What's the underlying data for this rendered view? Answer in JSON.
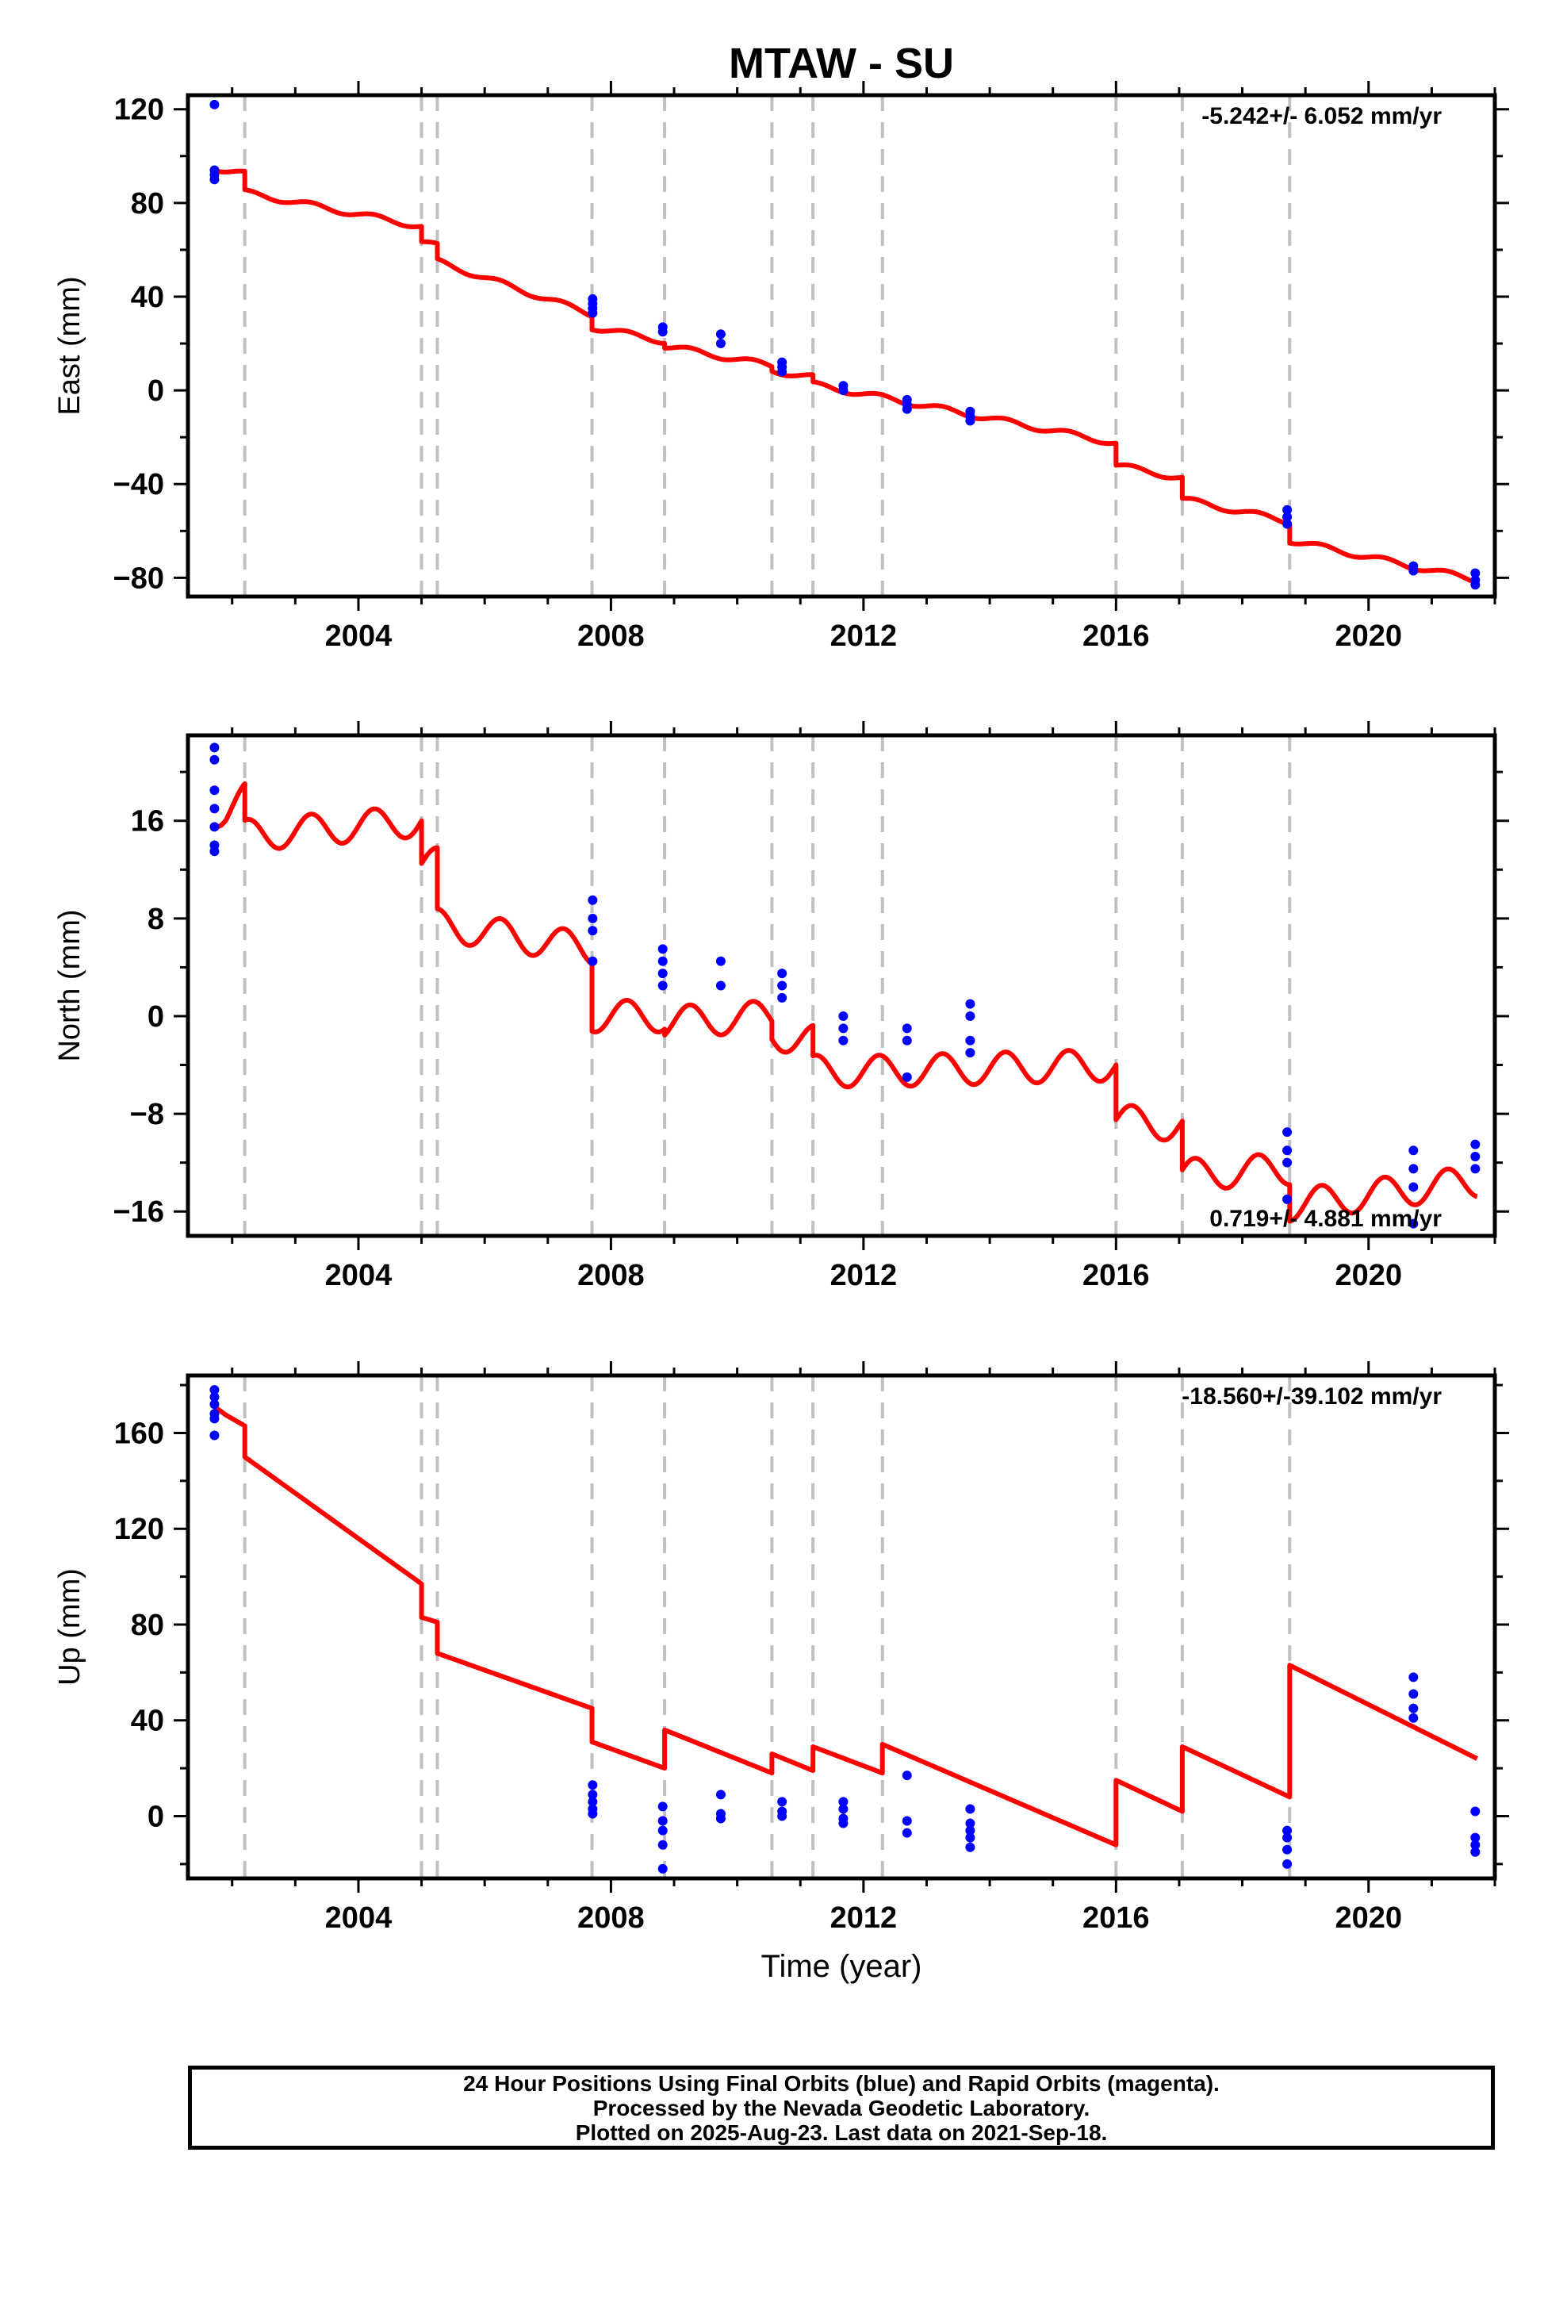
{
  "colors": {
    "model": "#ff0000",
    "points": "#0000ff",
    "breaks": "#c0c0c0",
    "frame": "#000000"
  },
  "chart_data": [
    {
      "type": "scatter",
      "panel": "east",
      "title": "MTAW - SU",
      "ylabel": "East (mm)",
      "xlabel": "",
      "rate_label": "-5.242+/- 6.052 mm/yr",
      "xlim": [
        2001.3,
        2022.0
      ],
      "ylim": [
        -88,
        126
      ],
      "xticks": [
        2004,
        2008,
        2012,
        2016,
        2020
      ],
      "yticks": [
        -80,
        -40,
        0,
        40,
        80,
        120
      ],
      "grid": false,
      "breaks": [
        2002.2,
        2005.0,
        2005.25,
        2007.7,
        2008.85,
        2010.55,
        2011.2,
        2012.3,
        2016.0,
        2017.05,
        2018.75
      ],
      "model": {
        "segments": [
          {
            "start": 2001.72,
            "end": 2001.9,
            "start_value": 95.0,
            "end_value": 93.9
          },
          {
            "start": 2001.9,
            "end": 2002.2,
            "start_value": 93.9,
            "end_value": 92.4
          },
          {
            "start": 2002.2,
            "end": 2005.0,
            "start_value": 84.5,
            "end_value": 70.0
          },
          {
            "start": 2005.0,
            "end": 2005.25,
            "start_value": 63.5,
            "end_value": 61.5
          },
          {
            "start": 2005.25,
            "end": 2007.7,
            "start_value": 55.0,
            "end_value": 32.5
          },
          {
            "start": 2007.7,
            "end": 2008.85,
            "start_value": 27.0,
            "end_value": 21.0
          },
          {
            "start": 2008.85,
            "end": 2010.55,
            "start_value": 19.0,
            "end_value": 10.5
          },
          {
            "start": 2010.55,
            "end": 2011.2,
            "start_value": 8.5,
            "end_value": 5.5
          },
          {
            "start": 2011.2,
            "end": 2012.3,
            "start_value": 2.5,
            "end_value": -3.0
          },
          {
            "start": 2012.3,
            "end": 2016.0,
            "start_value": -3.0,
            "end_value": -22.5
          },
          {
            "start": 2016.0,
            "end": 2017.05,
            "start_value": -32.0,
            "end_value": -37.5
          },
          {
            "start": 2017.05,
            "end": 2018.75,
            "start_value": -46.5,
            "end_value": -56.0
          },
          {
            "start": 2018.75,
            "end": 2021.72,
            "start_value": -64.0,
            "end_value": -81.0
          }
        ],
        "seasonal_amplitude": 1.2
      },
      "points": [
        {
          "x": 2001.72,
          "y": 122
        },
        {
          "x": 2001.72,
          "y": 94
        },
        {
          "x": 2001.72,
          "y": 92
        },
        {
          "x": 2001.72,
          "y": 90
        },
        {
          "x": 2007.71,
          "y": 39
        },
        {
          "x": 2007.71,
          "y": 37
        },
        {
          "x": 2007.71,
          "y": 35
        },
        {
          "x": 2007.71,
          "y": 33
        },
        {
          "x": 2008.82,
          "y": 27
        },
        {
          "x": 2008.82,
          "y": 25
        },
        {
          "x": 2009.74,
          "y": 24
        },
        {
          "x": 2009.74,
          "y": 20
        },
        {
          "x": 2010.71,
          "y": 12
        },
        {
          "x": 2010.71,
          "y": 10
        },
        {
          "x": 2010.71,
          "y": 8
        },
        {
          "x": 2011.68,
          "y": 2
        },
        {
          "x": 2011.68,
          "y": 0
        },
        {
          "x": 2012.69,
          "y": -4
        },
        {
          "x": 2012.69,
          "y": -6
        },
        {
          "x": 2012.69,
          "y": -8
        },
        {
          "x": 2013.69,
          "y": -9
        },
        {
          "x": 2013.69,
          "y": -11
        },
        {
          "x": 2013.69,
          "y": -13
        },
        {
          "x": 2018.71,
          "y": -51
        },
        {
          "x": 2018.71,
          "y": -54
        },
        {
          "x": 2018.71,
          "y": -57
        },
        {
          "x": 2020.71,
          "y": -75
        },
        {
          "x": 2020.71,
          "y": -77
        },
        {
          "x": 2021.69,
          "y": -78
        },
        {
          "x": 2021.69,
          "y": -81
        },
        {
          "x": 2021.69,
          "y": -83
        }
      ]
    },
    {
      "type": "scatter",
      "panel": "north",
      "title": "",
      "ylabel": "North (mm)",
      "xlabel": "",
      "rate_label": "0.719+/- 4.881 mm/yr",
      "xlim": [
        2001.3,
        2022.0
      ],
      "ylim": [
        -18,
        23
      ],
      "xticks": [
        2004,
        2008,
        2012,
        2016,
        2020
      ],
      "yticks": [
        -16,
        -8,
        0,
        8,
        16
      ],
      "grid": false,
      "breaks": [
        2002.2,
        2005.0,
        2005.25,
        2007.7,
        2008.85,
        2010.55,
        2011.2,
        2012.3,
        2016.0,
        2017.05,
        2018.75
      ],
      "model": {
        "segments": [
          {
            "start": 2001.72,
            "end": 2001.9,
            "start_value": 16.8,
            "end_value": 16.8
          },
          {
            "start": 2001.9,
            "end": 2002.2,
            "start_value": 16.8,
            "end_value": 17.8
          },
          {
            "start": 2002.2,
            "end": 2005.0,
            "start_value": 14.8,
            "end_value": 16.0
          },
          {
            "start": 2005.0,
            "end": 2005.25,
            "start_value": 12.5,
            "end_value": 12.5
          },
          {
            "start": 2005.25,
            "end": 2007.7,
            "start_value": 7.5,
            "end_value": 5.5
          },
          {
            "start": 2007.7,
            "end": 2008.85,
            "start_value": 0.0,
            "end_value": 0.0
          },
          {
            "start": 2008.85,
            "end": 2010.55,
            "start_value": -0.5,
            "end_value": 0.0
          },
          {
            "start": 2010.55,
            "end": 2011.2,
            "start_value": -1.5,
            "end_value": -2.0
          },
          {
            "start": 2011.2,
            "end": 2012.3,
            "start_value": -4.5,
            "end_value": -4.5
          },
          {
            "start": 2012.3,
            "end": 2016.0,
            "start_value": -4.5,
            "end_value": -4.0
          },
          {
            "start": 2016.0,
            "end": 2017.05,
            "start_value": -8.5,
            "end_value": -9.0
          },
          {
            "start": 2017.05,
            "end": 2018.75,
            "start_value": -13.0,
            "end_value": -12.5
          },
          {
            "start": 2018.75,
            "end": 2021.72,
            "start_value": -15.5,
            "end_value": -13.5
          }
        ],
        "seasonal_amplitude": 1.3
      },
      "points": [
        {
          "x": 2001.72,
          "y": 22
        },
        {
          "x": 2001.72,
          "y": 21
        },
        {
          "x": 2001.72,
          "y": 18.5
        },
        {
          "x": 2001.72,
          "y": 17
        },
        {
          "x": 2001.72,
          "y": 15.5
        },
        {
          "x": 2001.72,
          "y": 14
        },
        {
          "x": 2001.72,
          "y": 13.5
        },
        {
          "x": 2007.71,
          "y": 9.5
        },
        {
          "x": 2007.71,
          "y": 8
        },
        {
          "x": 2007.71,
          "y": 7
        },
        {
          "x": 2007.71,
          "y": 4.5
        },
        {
          "x": 2008.82,
          "y": 5.5
        },
        {
          "x": 2008.82,
          "y": 4.5
        },
        {
          "x": 2008.82,
          "y": 3.5
        },
        {
          "x": 2008.82,
          "y": 2.5
        },
        {
          "x": 2009.74,
          "y": 4.5
        },
        {
          "x": 2009.74,
          "y": 2.5
        },
        {
          "x": 2010.71,
          "y": 3.5
        },
        {
          "x": 2010.71,
          "y": 2.5
        },
        {
          "x": 2010.71,
          "y": 1.5
        },
        {
          "x": 2011.68,
          "y": 0
        },
        {
          "x": 2011.68,
          "y": -1
        },
        {
          "x": 2011.68,
          "y": -2
        },
        {
          "x": 2012.69,
          "y": -1
        },
        {
          "x": 2012.69,
          "y": -2
        },
        {
          "x": 2012.69,
          "y": -5
        },
        {
          "x": 2013.69,
          "y": 1
        },
        {
          "x": 2013.69,
          "y": 0
        },
        {
          "x": 2013.69,
          "y": -2
        },
        {
          "x": 2013.69,
          "y": -3
        },
        {
          "x": 2018.71,
          "y": -9.5
        },
        {
          "x": 2018.71,
          "y": -11
        },
        {
          "x": 2018.71,
          "y": -12
        },
        {
          "x": 2018.71,
          "y": -15
        },
        {
          "x": 2020.71,
          "y": -11
        },
        {
          "x": 2020.71,
          "y": -12.5
        },
        {
          "x": 2020.71,
          "y": -14
        },
        {
          "x": 2020.71,
          "y": -17
        },
        {
          "x": 2021.69,
          "y": -10.5
        },
        {
          "x": 2021.69,
          "y": -11.5
        },
        {
          "x": 2021.69,
          "y": -12.5
        }
      ]
    },
    {
      "type": "scatter",
      "panel": "up",
      "title": "",
      "ylabel": "Up (mm)",
      "xlabel": "Time (year)",
      "rate_label": "-18.560+/-39.102 mm/yr",
      "xlim": [
        2001.3,
        2022.0
      ],
      "ylim": [
        -26,
        184
      ],
      "xticks": [
        2004,
        2008,
        2012,
        2016,
        2020
      ],
      "yticks": [
        0,
        40,
        80,
        120,
        160
      ],
      "grid": false,
      "breaks": [
        2002.2,
        2005.0,
        2005.25,
        2007.7,
        2008.85,
        2010.55,
        2011.2,
        2012.3,
        2016.0,
        2017.05,
        2018.75
      ],
      "model": {
        "segments": [
          {
            "start": 2001.72,
            "end": 2001.9,
            "start_value": 171.0,
            "end_value": 167.5
          },
          {
            "start": 2001.9,
            "end": 2002.2,
            "start_value": 167.5,
            "end_value": 163.0
          },
          {
            "start": 2002.2,
            "end": 2005.0,
            "start_value": 150.0,
            "end_value": 97.0
          },
          {
            "start": 2005.0,
            "end": 2005.25,
            "start_value": 83.0,
            "end_value": 81.0
          },
          {
            "start": 2005.25,
            "end": 2007.7,
            "start_value": 68.0,
            "end_value": 45.0
          },
          {
            "start": 2007.7,
            "end": 2008.85,
            "start_value": 31.0,
            "end_value": 20.0
          },
          {
            "start": 2008.85,
            "end": 2010.55,
            "start_value": 36.0,
            "end_value": 18.0
          },
          {
            "start": 2010.55,
            "end": 2011.2,
            "start_value": 26.0,
            "end_value": 19.0
          },
          {
            "start": 2011.2,
            "end": 2012.3,
            "start_value": 29.0,
            "end_value": 18.0
          },
          {
            "start": 2012.3,
            "end": 2016.0,
            "start_value": 30.0,
            "end_value": -12.0
          },
          {
            "start": 2016.0,
            "end": 2017.05,
            "start_value": 15.0,
            "end_value": 2.0
          },
          {
            "start": 2017.05,
            "end": 2018.75,
            "start_value": 29.0,
            "end_value": 8.0
          },
          {
            "start": 2018.75,
            "end": 2021.72,
            "start_value": 63.0,
            "end_value": 24.0
          }
        ],
        "seasonal_amplitude": 0
      },
      "points": [
        {
          "x": 2001.72,
          "y": 178
        },
        {
          "x": 2001.72,
          "y": 175
        },
        {
          "x": 2001.72,
          "y": 172
        },
        {
          "x": 2001.72,
          "y": 168
        },
        {
          "x": 2001.72,
          "y": 166
        },
        {
          "x": 2001.72,
          "y": 159
        },
        {
          "x": 2007.71,
          "y": 13
        },
        {
          "x": 2007.71,
          "y": 9
        },
        {
          "x": 2007.71,
          "y": 6
        },
        {
          "x": 2007.71,
          "y": 3
        },
        {
          "x": 2007.71,
          "y": 1
        },
        {
          "x": 2008.82,
          "y": 4
        },
        {
          "x": 2008.82,
          "y": -2
        },
        {
          "x": 2008.82,
          "y": -6
        },
        {
          "x": 2008.82,
          "y": -12
        },
        {
          "x": 2008.82,
          "y": -22
        },
        {
          "x": 2009.74,
          "y": 9
        },
        {
          "x": 2009.74,
          "y": 1
        },
        {
          "x": 2009.74,
          "y": -1
        },
        {
          "x": 2010.71,
          "y": 6
        },
        {
          "x": 2010.71,
          "y": 2
        },
        {
          "x": 2010.71,
          "y": 0
        },
        {
          "x": 2011.68,
          "y": 6
        },
        {
          "x": 2011.68,
          "y": 3
        },
        {
          "x": 2011.68,
          "y": -1
        },
        {
          "x": 2011.68,
          "y": -3
        },
        {
          "x": 2012.69,
          "y": 17
        },
        {
          "x": 2012.69,
          "y": -2
        },
        {
          "x": 2012.69,
          "y": -7
        },
        {
          "x": 2013.69,
          "y": 3
        },
        {
          "x": 2013.69,
          "y": -3
        },
        {
          "x": 2013.69,
          "y": -6
        },
        {
          "x": 2013.69,
          "y": -9
        },
        {
          "x": 2013.69,
          "y": -13
        },
        {
          "x": 2018.71,
          "y": -6
        },
        {
          "x": 2018.71,
          "y": -9
        },
        {
          "x": 2018.71,
          "y": -14
        },
        {
          "x": 2018.71,
          "y": -20
        },
        {
          "x": 2020.71,
          "y": 58
        },
        {
          "x": 2020.71,
          "y": 51
        },
        {
          "x": 2020.71,
          "y": 45
        },
        {
          "x": 2020.71,
          "y": 41
        },
        {
          "x": 2021.69,
          "y": 2
        },
        {
          "x": 2021.69,
          "y": -9
        },
        {
          "x": 2021.69,
          "y": -12
        },
        {
          "x": 2021.69,
          "y": -15
        }
      ]
    }
  ],
  "footer": {
    "line1": "24 Hour Positions Using Final Orbits (blue) and Rapid Orbits (magenta).",
    "line2": "Processed by the Nevada Geodetic Laboratory.",
    "line3": "Plotted on 2025-Aug-23. Last data on 2021-Sep-18."
  }
}
